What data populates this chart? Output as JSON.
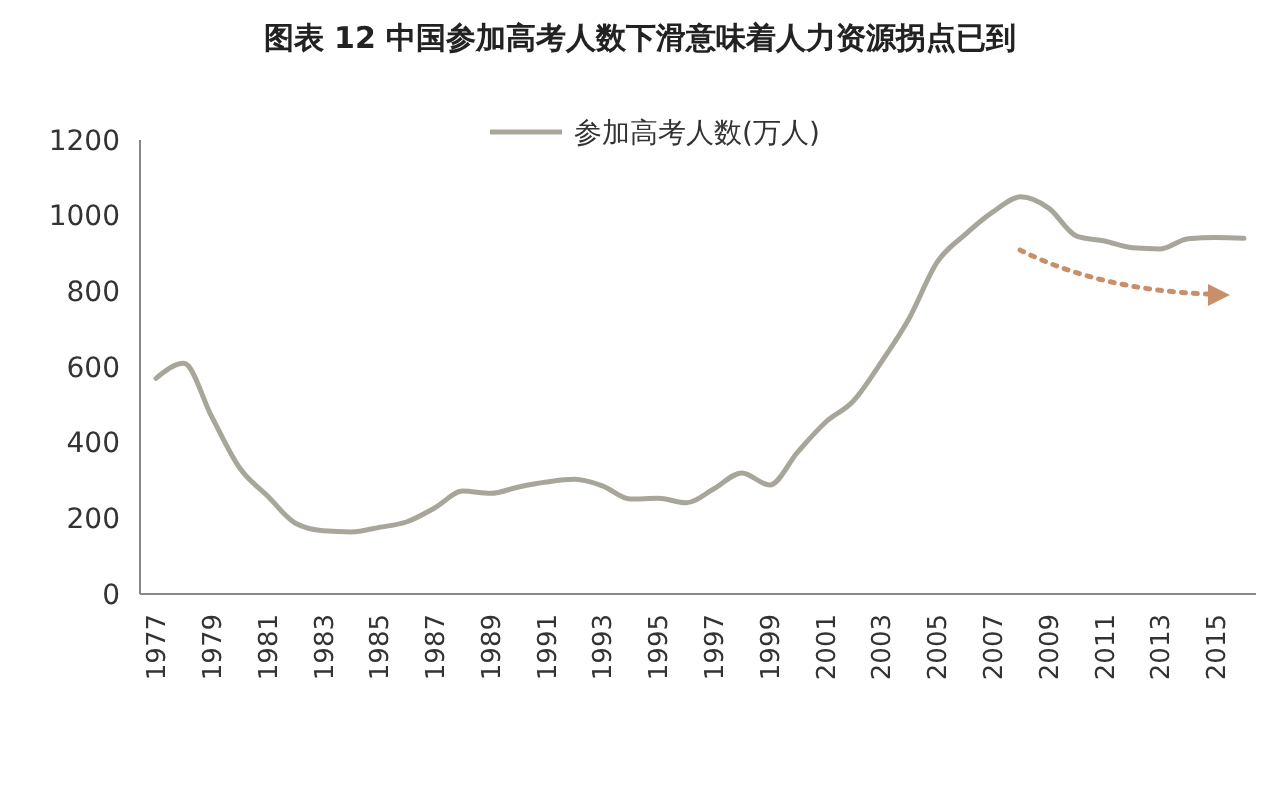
{
  "chart_data": {
    "type": "line",
    "title": "图表 12  中国参加高考人数下滑意味着人力资源拐点已到",
    "categories": [
      "1977",
      null,
      "1979",
      null,
      "1981",
      null,
      "1983",
      null,
      "1985",
      null,
      "1987",
      null,
      "1989",
      null,
      "1991",
      null,
      "1993",
      null,
      "1995",
      null,
      "1997",
      null,
      "1999",
      null,
      "2001",
      null,
      "2003",
      null,
      "2005",
      null,
      "2007",
      null,
      "2009",
      null,
      "2011",
      null,
      "2013",
      null,
      "2015",
      null
    ],
    "series": [
      {
        "name": "参加高考人数(万人)",
        "color": "#a8a69a",
        "values": [
          570,
          610,
          468,
          333,
          259,
          187,
          167,
          164,
          176,
          191,
          228,
          272,
          266,
          283,
          296,
          303,
          286,
          251,
          253,
          241,
          278,
          320,
          288,
          375,
          454,
          510,
          613,
          729,
          877,
          950,
          1010,
          1050,
          1020,
          946,
          933,
          915,
          912,
          939,
          942,
          940
        ]
      }
    ],
    "ylim": [
      0,
      1200
    ],
    "yticks": [
      0,
      200,
      400,
      600,
      800,
      1000,
      1200
    ],
    "grid": false,
    "legend": "top",
    "marker": "none",
    "line_style": "solid"
  }
}
